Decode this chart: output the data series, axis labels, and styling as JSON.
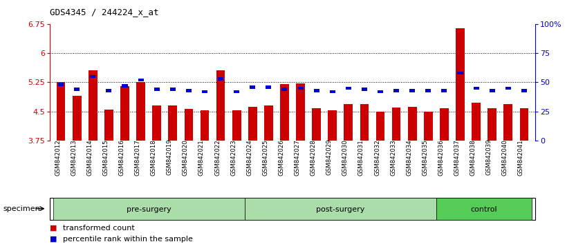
{
  "title": "GDS4345 / 244224_x_at",
  "samples": [
    "GSM842012",
    "GSM842013",
    "GSM842014",
    "GSM842015",
    "GSM842016",
    "GSM842017",
    "GSM842018",
    "GSM842019",
    "GSM842020",
    "GSM842021",
    "GSM842022",
    "GSM842023",
    "GSM842024",
    "GSM842025",
    "GSM842026",
    "GSM842027",
    "GSM842028",
    "GSM842029",
    "GSM842030",
    "GSM842031",
    "GSM842032",
    "GSM842033",
    "GSM842034",
    "GSM842035",
    "GSM842036",
    "GSM842037",
    "GSM842038",
    "GSM842039",
    "GSM842040",
    "GSM842041"
  ],
  "red_values": [
    5.25,
    4.9,
    5.57,
    4.55,
    5.15,
    5.25,
    4.65,
    4.65,
    4.57,
    4.52,
    5.57,
    4.52,
    4.62,
    4.65,
    5.2,
    5.23,
    4.58,
    4.52,
    4.68,
    4.68,
    4.5,
    4.6,
    4.62,
    4.5,
    4.58,
    6.65,
    4.72,
    4.58,
    4.68,
    4.58
  ],
  "blue_values": [
    48,
    44,
    55,
    43,
    47,
    52,
    44,
    44,
    43,
    42,
    53,
    42,
    46,
    46,
    44,
    45,
    43,
    42,
    45,
    44,
    42,
    43,
    43,
    43,
    43,
    58,
    45,
    43,
    45,
    43
  ],
  "groups": [
    {
      "label": "pre-surgery",
      "start": 0,
      "end": 12,
      "color": "#AADDAA"
    },
    {
      "label": "post-surgery",
      "start": 12,
      "end": 24,
      "color": "#AADDAA"
    },
    {
      "label": "control",
      "start": 24,
      "end": 30,
      "color": "#55CC55"
    }
  ],
  "ymin": 3.75,
  "ymax": 6.75,
  "yticks": [
    3.75,
    4.5,
    5.25,
    6.0,
    6.75
  ],
  "ytick_labels": [
    "3.75",
    "4.5",
    "5.25",
    "6",
    "6.75"
  ],
  "right_yticks": [
    0,
    25,
    50,
    75,
    100
  ],
  "right_ytick_labels": [
    "0",
    "25",
    "50",
    "75",
    "100%"
  ],
  "dotted_lines": [
    4.5,
    5.25,
    6.0
  ],
  "bar_color": "#CC0000",
  "blue_color": "#0000CC",
  "specimen_label": "specimen",
  "legend_items": [
    {
      "color": "#CC0000",
      "label": "transformed count"
    },
    {
      "color": "#0000CC",
      "label": "percentile rank within the sample"
    }
  ]
}
